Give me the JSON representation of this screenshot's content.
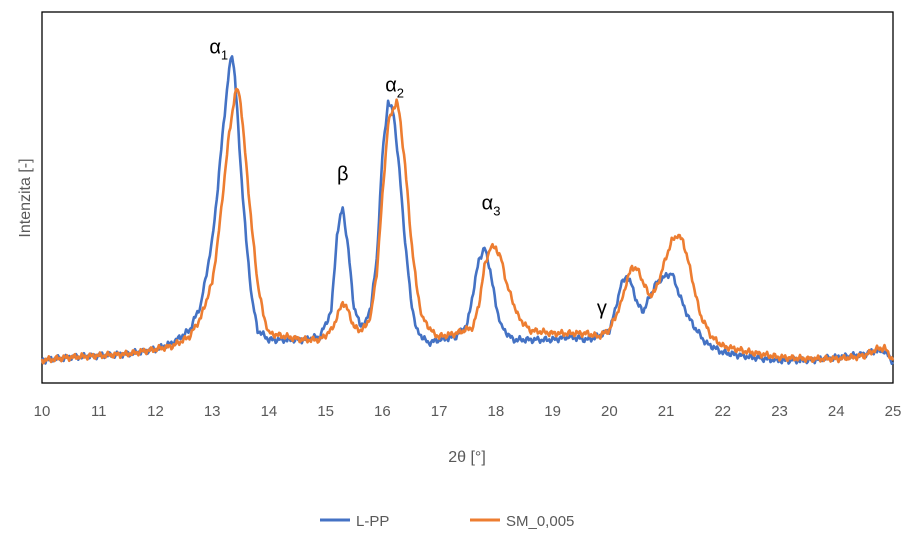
{
  "chart_data": {
    "type": "line",
    "xlabel": "2θ [°]",
    "ylabel": "Intenzita [-]",
    "xlim": [
      10,
      25
    ],
    "ylim": [
      0,
      100
    ],
    "xticks": [
      "10",
      "11",
      "12",
      "13",
      "14",
      "15",
      "16",
      "17",
      "18",
      "19",
      "20",
      "21",
      "22",
      "23",
      "24",
      "25"
    ],
    "grid": false,
    "legend": "bottom-center",
    "annotations": [
      {
        "base": "α",
        "sub": "1",
        "x": 12.95,
        "y": 97
      },
      {
        "base": "β",
        "sub": "",
        "x": 15.2,
        "y": 57
      },
      {
        "base": "α",
        "sub": "2",
        "x": 16.05,
        "y": 85
      },
      {
        "base": "α",
        "sub": "3",
        "x": 17.75,
        "y": 48
      },
      {
        "base": "γ",
        "sub": "",
        "x": 19.78,
        "y": 15
      }
    ],
    "series": [
      {
        "name": "L-PP",
        "color": "#4472C4",
        "x": [
          10,
          10.5,
          11,
          11.5,
          12,
          12.3,
          12.6,
          12.8,
          13.0,
          13.1,
          13.2,
          13.3,
          13.35,
          13.4,
          13.5,
          13.6,
          13.7,
          13.8,
          14.0,
          14.3,
          14.6,
          14.9,
          15.1,
          15.2,
          15.3,
          15.4,
          15.5,
          15.6,
          15.7,
          15.8,
          15.9,
          16.0,
          16.1,
          16.2,
          16.3,
          16.4,
          16.5,
          16.6,
          16.8,
          17.0,
          17.3,
          17.5,
          17.6,
          17.7,
          17.8,
          17.9,
          18.0,
          18.1,
          18.3,
          18.6,
          19.0,
          19.3,
          19.6,
          19.8,
          20.0,
          20.1,
          20.2,
          20.3,
          20.4,
          20.5,
          20.6,
          20.7,
          20.8,
          20.9,
          21.0,
          21.1,
          21.2,
          21.3,
          21.4,
          21.5,
          21.7,
          22.0,
          22.5,
          23.0,
          23.5,
          24.0,
          24.3,
          24.5,
          24.7,
          24.85,
          25
        ],
        "y": [
          0.5,
          1.5,
          2,
          2.5,
          4,
          6,
          10,
          18,
          38,
          55,
          75,
          92,
          97,
          90,
          62,
          38,
          20,
          10,
          7,
          7,
          7,
          8,
          16,
          40,
          49,
          35,
          17,
          12,
          12,
          18,
          32,
          65,
          82,
          78,
          60,
          38,
          20,
          10,
          6,
          7,
          8,
          12,
          22,
          32,
          36,
          29,
          18,
          11,
          7,
          7,
          7,
          8,
          7,
          8,
          10,
          16,
          24,
          27,
          24,
          18,
          16,
          20,
          24,
          26,
          27,
          28,
          23,
          18,
          14,
          11,
          6,
          3,
          1.5,
          0.5,
          0.5,
          1.5,
          2,
          2.5,
          3.5,
          3.5,
          0
        ]
      },
      {
        "name": "SM_0,005",
        "color": "#ED7D31",
        "x": [
          10,
          10.5,
          11,
          11.5,
          12,
          12.3,
          12.6,
          12.8,
          13.0,
          13.1,
          13.2,
          13.3,
          13.4,
          13.45,
          13.5,
          13.6,
          13.7,
          13.8,
          13.9,
          14.0,
          14.3,
          14.6,
          14.9,
          15.1,
          15.2,
          15.3,
          15.4,
          15.5,
          15.6,
          15.7,
          15.8,
          15.9,
          16.0,
          16.1,
          16.2,
          16.25,
          16.3,
          16.4,
          16.5,
          16.6,
          16.7,
          16.9,
          17.0,
          17.3,
          17.6,
          17.7,
          17.8,
          17.9,
          18.0,
          18.1,
          18.2,
          18.4,
          18.6,
          19.0,
          19.3,
          19.6,
          19.8,
          20.0,
          20.1,
          20.2,
          20.3,
          20.4,
          20.5,
          20.6,
          20.7,
          20.8,
          20.9,
          21.0,
          21.1,
          21.2,
          21.3,
          21.4,
          21.5,
          21.6,
          21.8,
          22.0,
          22.5,
          23.0,
          23.5,
          24.0,
          24.3,
          24.5,
          24.7,
          24.85,
          25
        ],
        "y": [
          0.5,
          1.5,
          2,
          2.5,
          4,
          5,
          8,
          14,
          25,
          38,
          55,
          72,
          84,
          86,
          82,
          62,
          42,
          25,
          15,
          9,
          8,
          7,
          7,
          10,
          14,
          19,
          16,
          11,
          10,
          11,
          15,
          28,
          52,
          75,
          80,
          82,
          78,
          62,
          40,
          24,
          14,
          9,
          8,
          9,
          11,
          18,
          30,
          36,
          36,
          32,
          24,
          14,
          10,
          9,
          9,
          9,
          8,
          10,
          14,
          18,
          25,
          30,
          29,
          25,
          21,
          22,
          27,
          33,
          38,
          40,
          38,
          31,
          23,
          15,
          8,
          5,
          3,
          1.5,
          1,
          1,
          1.5,
          2,
          4,
          4.5,
          0.5
        ]
      }
    ]
  }
}
